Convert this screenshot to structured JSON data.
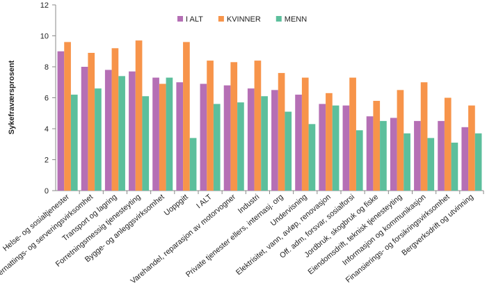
{
  "chart_data": {
    "type": "bar",
    "y_label": "Sykefraværsprosent",
    "categories": [
      "Helse- og sosialtjenester",
      "Overnattings- og serveringsvirksomhet",
      "Transport og lagring",
      "Forretningsmessig tjenesteyting",
      "Bygge- og anleggsvirksomhet",
      "Uoppgitt",
      "I ALT",
      "Varehandel, reparasjon av motorvogner",
      "Industri",
      "Private tjenester ellers, internasj. org",
      "Undervisning",
      "Elektrisitet, vann, avløp, renovasjon",
      "Off. adm, forsvar, sosialforsi",
      "Jordbruk, skogbruk og fiske",
      "Eiendomsdrift, teknisk tjenesteyting",
      "Informasjon og kommunikasjon",
      "Finansierings- og forsikringsvirksomhet",
      "Bergverksdrift og utvinning"
    ],
    "series": [
      {
        "name": "I ALT",
        "color": "#b56fb5",
        "values": [
          9.0,
          8.0,
          7.8,
          7.7,
          7.3,
          7.0,
          6.9,
          6.8,
          6.6,
          6.5,
          6.2,
          5.6,
          5.5,
          4.8,
          4.7,
          4.5,
          4.5,
          4.1
        ]
      },
      {
        "name": "KVINNER",
        "color": "#f7944a",
        "values": [
          9.6,
          8.9,
          9.2,
          9.7,
          6.9,
          9.6,
          8.4,
          8.3,
          8.4,
          7.6,
          7.3,
          6.3,
          7.3,
          5.8,
          6.5,
          7.0,
          6.0,
          5.5
        ]
      },
      {
        "name": "MENN",
        "color": "#5cbf9c",
        "values": [
          6.2,
          6.6,
          7.4,
          6.1,
          7.3,
          3.4,
          5.6,
          5.7,
          6.1,
          5.1,
          4.3,
          5.5,
          3.9,
          4.5,
          3.7,
          3.4,
          3.1,
          3.7
        ]
      }
    ],
    "ylim": [
      0,
      12
    ],
    "yticks": [
      0,
      2,
      4,
      6,
      8,
      10,
      12
    ],
    "grid": false,
    "legend": "top"
  }
}
